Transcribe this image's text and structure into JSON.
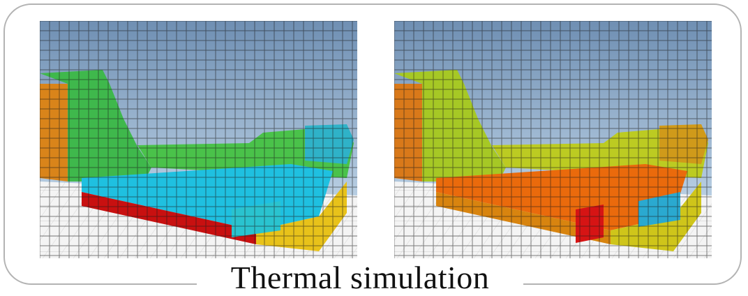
{
  "caption": "Thermal simulation",
  "panels": [
    {
      "id": "left",
      "state": "cool interior"
    },
    {
      "id": "right",
      "state": "heated interior"
    }
  ],
  "colors": {
    "sky_top": "#6f8fb3",
    "sky_bottom": "#c9dcec",
    "frame": "#b3b3b3",
    "cube_edge": "#1a1a1a",
    "heat_scale": [
      "#00b7ff",
      "#2ec9c0",
      "#4fc14d",
      "#9cd02a",
      "#e3d319",
      "#f29a10",
      "#ea5a06",
      "#d31a05"
    ]
  }
}
